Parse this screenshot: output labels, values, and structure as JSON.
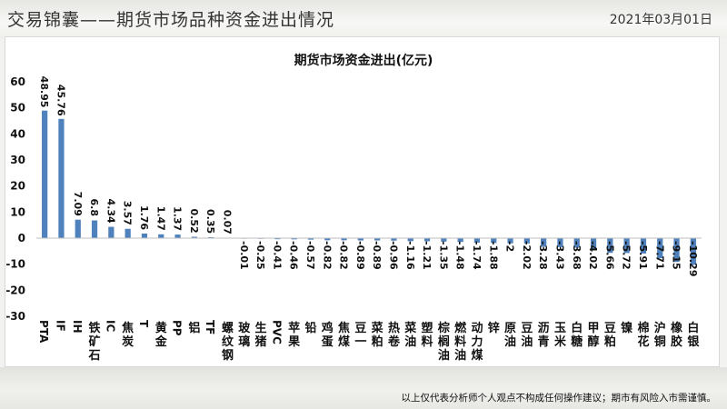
{
  "header": {
    "title": "交易锦囊——期货市场品种资金进出情况",
    "date": "2021年03月01日"
  },
  "footer": {
    "disclaimer": "以上仅代表分析师个人观点不构成任何操作建议；期市有风险入市需谨慎。"
  },
  "colors": {
    "bar": "#4f81bd",
    "axis": "#bfbfbf",
    "text": "#111111"
  },
  "chart_data": {
    "type": "bar",
    "title": "期货市场资金进出(亿元)",
    "xlabel": "",
    "ylabel": "",
    "ylim": [
      -30,
      60
    ],
    "yticks": [
      -30,
      -20,
      -10,
      0,
      10,
      20,
      30,
      40,
      50,
      60
    ],
    "grid": false,
    "legend": false,
    "categories": [
      "PTA",
      "IF",
      "IH",
      "铁矿石",
      "IC",
      "焦炭",
      "T",
      "黄金",
      "PP",
      "铝",
      "TF",
      "螺纹钢",
      "玻璃",
      "生猪",
      "PVC",
      "苹果",
      "铅",
      "鸡蛋",
      "焦煤",
      "豆一",
      "菜粕",
      "热卷",
      "菜油",
      "塑料",
      "棕榈油",
      "燃料油",
      "动力煤",
      "锌",
      "原油",
      "豆油",
      "沥青",
      "玉米",
      "白糖",
      "甲醇",
      "豆粕",
      "镍",
      "棉花",
      "沪铜",
      "橡胶",
      "白银"
    ],
    "values": [
      48.95,
      45.76,
      7.09,
      6.8,
      4.34,
      3.57,
      1.76,
      1.47,
      1.37,
      0.52,
      0.35,
      0.07,
      -0.01,
      -0.25,
      -0.41,
      -0.46,
      -0.57,
      -0.82,
      -0.82,
      -0.89,
      -0.89,
      -0.96,
      -1.16,
      -1.21,
      -1.35,
      -1.48,
      -1.74,
      -1.88,
      -2,
      -2.02,
      -3.28,
      -3.43,
      -3.68,
      -4.02,
      -5.66,
      -5.72,
      -5.91,
      -7.71,
      -9.15,
      -10.29
    ],
    "value_labels": [
      "48.95",
      "45.76",
      "7.09",
      "6.8",
      "4.34",
      "3.57",
      "1.76",
      "1.47",
      "1.37",
      "0.52",
      "0.35",
      "0.07",
      "-0.01",
      "-0.25",
      "-0.41",
      "-0.46",
      "-0.57",
      "-0.82",
      "-0.82",
      "-0.89",
      "-0.89",
      "-0.96",
      "-1.16",
      "-1.21",
      "-1.35",
      "-1.48",
      "-1.74",
      "-1.88",
      "-2",
      "-2.02",
      "-3.28",
      "-3.43",
      "-3.68",
      "-4.02",
      "-5.66",
      "-5.72",
      "-5.91",
      "-7.71",
      "-9.15",
      "-10.29"
    ]
  }
}
